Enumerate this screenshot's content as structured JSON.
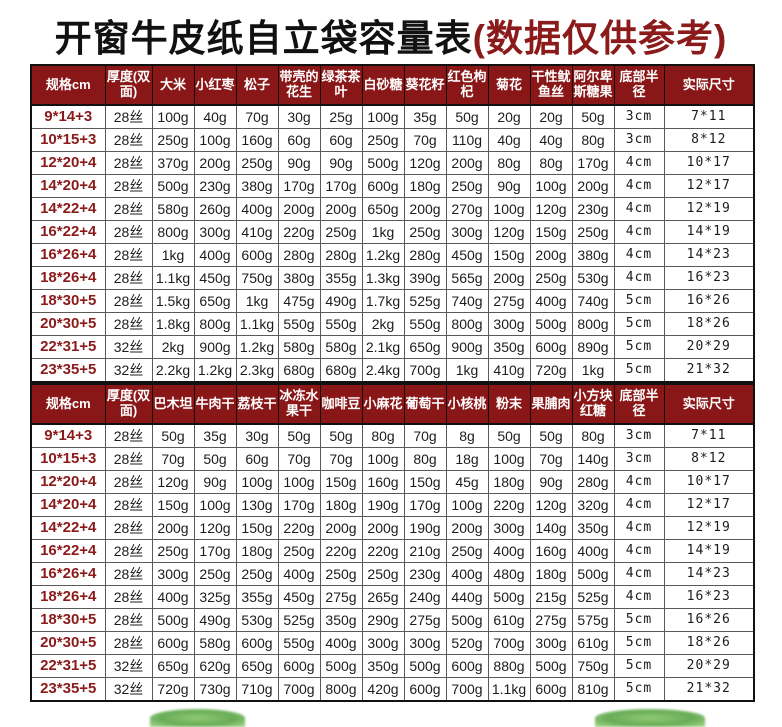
{
  "title": {
    "main": "开窗牛皮纸自立袋容量表",
    "note": "(数据仅供参考)"
  },
  "colors": {
    "header_bg": "#8a1717",
    "accent_red": "#8b1a1a",
    "grid_line": "#595959"
  },
  "footer": {
    "decorations": [
      "plant-left",
      "plant-right"
    ]
  },
  "tables": [
    {
      "headers": [
        "规格cm",
        "厚度(双面)",
        "大米",
        "小红枣",
        "松子",
        "带壳的花生",
        "绿茶茶叶",
        "白砂糖",
        "葵花籽",
        "红色枸杞",
        "菊花",
        "干性鱿鱼丝",
        "阿尔卑斯糖果",
        "底部半径",
        "实际尺寸"
      ],
      "rows": [
        [
          "9*14+3",
          "28丝",
          "100g",
          "40g",
          "70g",
          "30g",
          "25g",
          "100g",
          "35g",
          "50g",
          "20g",
          "20g",
          "50g",
          "3cm",
          "7*11"
        ],
        [
          "10*15+3",
          "28丝",
          "250g",
          "100g",
          "160g",
          "60g",
          "60g",
          "250g",
          "70g",
          "110g",
          "40g",
          "40g",
          "80g",
          "3cm",
          "8*12"
        ],
        [
          "12*20+4",
          "28丝",
          "370g",
          "200g",
          "250g",
          "90g",
          "90g",
          "500g",
          "120g",
          "200g",
          "80g",
          "80g",
          "170g",
          "4cm",
          "10*17"
        ],
        [
          "14*20+4",
          "28丝",
          "500g",
          "230g",
          "380g",
          "170g",
          "170g",
          "600g",
          "180g",
          "250g",
          "90g",
          "100g",
          "200g",
          "4cm",
          "12*17"
        ],
        [
          "14*22+4",
          "28丝",
          "580g",
          "260g",
          "400g",
          "200g",
          "200g",
          "650g",
          "200g",
          "270g",
          "100g",
          "120g",
          "230g",
          "4cm",
          "12*19"
        ],
        [
          "16*22+4",
          "28丝",
          "800g",
          "300g",
          "410g",
          "220g",
          "250g",
          "1kg",
          "250g",
          "300g",
          "120g",
          "150g",
          "250g",
          "4cm",
          "14*19"
        ],
        [
          "16*26+4",
          "28丝",
          "1kg",
          "400g",
          "600g",
          "280g",
          "280g",
          "1.2kg",
          "280g",
          "450g",
          "150g",
          "200g",
          "380g",
          "4cm",
          "14*23"
        ],
        [
          "18*26+4",
          "28丝",
          "1.1kg",
          "450g",
          "750g",
          "380g",
          "355g",
          "1.3kg",
          "390g",
          "565g",
          "200g",
          "250g",
          "530g",
          "4cm",
          "16*23"
        ],
        [
          "18*30+5",
          "28丝",
          "1.5kg",
          "650g",
          "1kg",
          "475g",
          "490g",
          "1.7kg",
          "525g",
          "740g",
          "275g",
          "400g",
          "740g",
          "5cm",
          "16*26"
        ],
        [
          "20*30+5",
          "28丝",
          "1.8kg",
          "800g",
          "1.1kg",
          "550g",
          "550g",
          "2kg",
          "550g",
          "800g",
          "300g",
          "500g",
          "800g",
          "5cm",
          "18*26"
        ],
        [
          "22*31+5",
          "32丝",
          "2kg",
          "900g",
          "1.2kg",
          "580g",
          "580g",
          "2.1kg",
          "650g",
          "900g",
          "350g",
          "600g",
          "890g",
          "5cm",
          "20*29"
        ],
        [
          "23*35+5",
          "32丝",
          "2.2kg",
          "1.2kg",
          "2.3kg",
          "680g",
          "680g",
          "2.4kg",
          "700g",
          "1kg",
          "410g",
          "720g",
          "1kg",
          "5cm",
          "21*32"
        ]
      ]
    },
    {
      "headers": [
        "规格cm",
        "厚度(双面)",
        "巴木坦",
        "牛肉干",
        "荔枝干",
        "冰冻水果干",
        "咖啡豆",
        "小麻花",
        "葡萄干",
        "小核桃",
        "粉末",
        "果脯肉",
        "小方块红糖",
        "底部半径",
        "实际尺寸"
      ],
      "rows": [
        [
          "9*14+3",
          "28丝",
          "50g",
          "35g",
          "30g",
          "50g",
          "50g",
          "80g",
          "70g",
          "8g",
          "50g",
          "50g",
          "80g",
          "3cm",
          "7*11"
        ],
        [
          "10*15+3",
          "28丝",
          "70g",
          "50g",
          "60g",
          "70g",
          "70g",
          "100g",
          "80g",
          "18g",
          "100g",
          "70g",
          "140g",
          "3cm",
          "8*12"
        ],
        [
          "12*20+4",
          "28丝",
          "120g",
          "90g",
          "100g",
          "100g",
          "150g",
          "160g",
          "150g",
          "45g",
          "180g",
          "90g",
          "280g",
          "4cm",
          "10*17"
        ],
        [
          "14*20+4",
          "28丝",
          "150g",
          "100g",
          "130g",
          "170g",
          "180g",
          "190g",
          "170g",
          "100g",
          "220g",
          "120g",
          "320g",
          "4cm",
          "12*17"
        ],
        [
          "14*22+4",
          "28丝",
          "200g",
          "120g",
          "150g",
          "220g",
          "200g",
          "200g",
          "190g",
          "200g",
          "300g",
          "140g",
          "350g",
          "4cm",
          "12*19"
        ],
        [
          "16*22+4",
          "28丝",
          "250g",
          "170g",
          "180g",
          "250g",
          "220g",
          "220g",
          "210g",
          "250g",
          "400g",
          "160g",
          "400g",
          "4cm",
          "14*19"
        ],
        [
          "16*26+4",
          "28丝",
          "300g",
          "250g",
          "250g",
          "400g",
          "250g",
          "250g",
          "230g",
          "400g",
          "480g",
          "180g",
          "500g",
          "4cm",
          "14*23"
        ],
        [
          "18*26+4",
          "28丝",
          "400g",
          "325g",
          "355g",
          "450g",
          "275g",
          "265g",
          "240g",
          "440g",
          "500g",
          "215g",
          "525g",
          "4cm",
          "16*23"
        ],
        [
          "18*30+5",
          "28丝",
          "500g",
          "490g",
          "530g",
          "525g",
          "350g",
          "290g",
          "275g",
          "500g",
          "610g",
          "275g",
          "575g",
          "5cm",
          "16*26"
        ],
        [
          "20*30+5",
          "28丝",
          "600g",
          "580g",
          "600g",
          "550g",
          "400g",
          "300g",
          "300g",
          "520g",
          "700g",
          "300g",
          "610g",
          "5cm",
          "18*26"
        ],
        [
          "22*31+5",
          "32丝",
          "650g",
          "620g",
          "650g",
          "600g",
          "500g",
          "350g",
          "500g",
          "600g",
          "880g",
          "500g",
          "750g",
          "5cm",
          "20*29"
        ],
        [
          "23*35+5",
          "32丝",
          "720g",
          "730g",
          "710g",
          "700g",
          "800g",
          "420g",
          "600g",
          "700g",
          "1.1kg",
          "600g",
          "810g",
          "5cm",
          "21*32"
        ]
      ]
    }
  ]
}
